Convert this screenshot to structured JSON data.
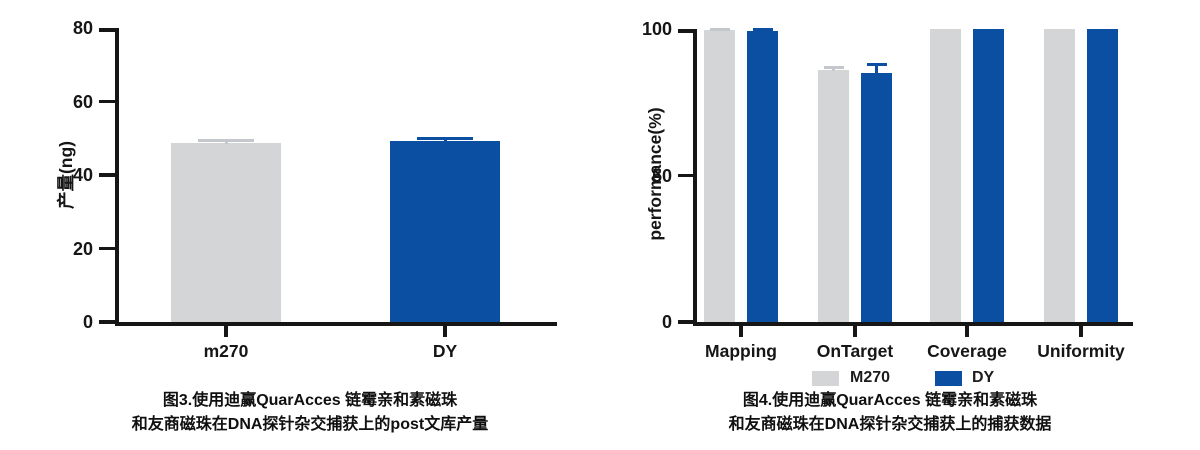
{
  "colors": {
    "gray_series": "#d4d5d6",
    "gray_error": "#c4c8cc",
    "blue_series": "#0b4fa3",
    "axis": "#161616"
  },
  "chart_data": [
    {
      "type": "bar",
      "title": "图3.使用迪赢QuarAcces 链霉亲和素磁珠 和友商磁珠在DNA探针杂交捕获上的post文库产量",
      "ylabel": "产量(ng)",
      "xlabel": "",
      "categories": [
        "m270",
        "DY"
      ],
      "series": [
        {
          "name": "产量",
          "values": [
            48.7,
            49.2
          ],
          "errors": [
            0.7,
            0.8
          ],
          "colors": [
            "#d4d5d6",
            "#0b4fa3"
          ],
          "error_colors": [
            "#c4c8cc",
            "#0b4fa3"
          ]
        }
      ],
      "ylim": [
        0,
        80
      ],
      "yticks": [
        0,
        20,
        40,
        60,
        80
      ],
      "grid": false,
      "legend_position": "none",
      "caption": [
        "图3.使用迪赢QuarAcces 链霉亲和素磁珠",
        "和友商磁珠在DNA探针杂交捕获上的post文库产量"
      ]
    },
    {
      "type": "bar",
      "title": "图4.使用迪赢QuarAcces 链霉亲和素磁珠 和友商磁珠在DNA探针杂交捕获上的捕获数据",
      "ylabel": "performance(%)",
      "xlabel": "",
      "categories": [
        "Mapping",
        "OnTarget",
        "Coverage",
        "Uniformity"
      ],
      "series": [
        {
          "name": "M270",
          "color": "#d4d5d6",
          "error_color": "#c4c8cc",
          "values": [
            99.7,
            86,
            100,
            100
          ],
          "errors": [
            0.3,
            1,
            0,
            0
          ]
        },
        {
          "name": "DY",
          "color": "#0b4fa3",
          "error_color": "#0b4fa3",
          "values": [
            99.3,
            85,
            100,
            100
          ],
          "errors": [
            0.4,
            3,
            0,
            0
          ]
        }
      ],
      "ylim": [
        0,
        100
      ],
      "yticks": [
        0,
        50,
        100
      ],
      "grid": false,
      "legend": [
        "M270",
        "DY"
      ],
      "legend_position": "bottom",
      "caption": [
        "图4.使用迪赢QuarAcces 链霉亲和素磁珠",
        "和友商磁珠在DNA探针杂交捕获上的捕获数据"
      ]
    }
  ]
}
